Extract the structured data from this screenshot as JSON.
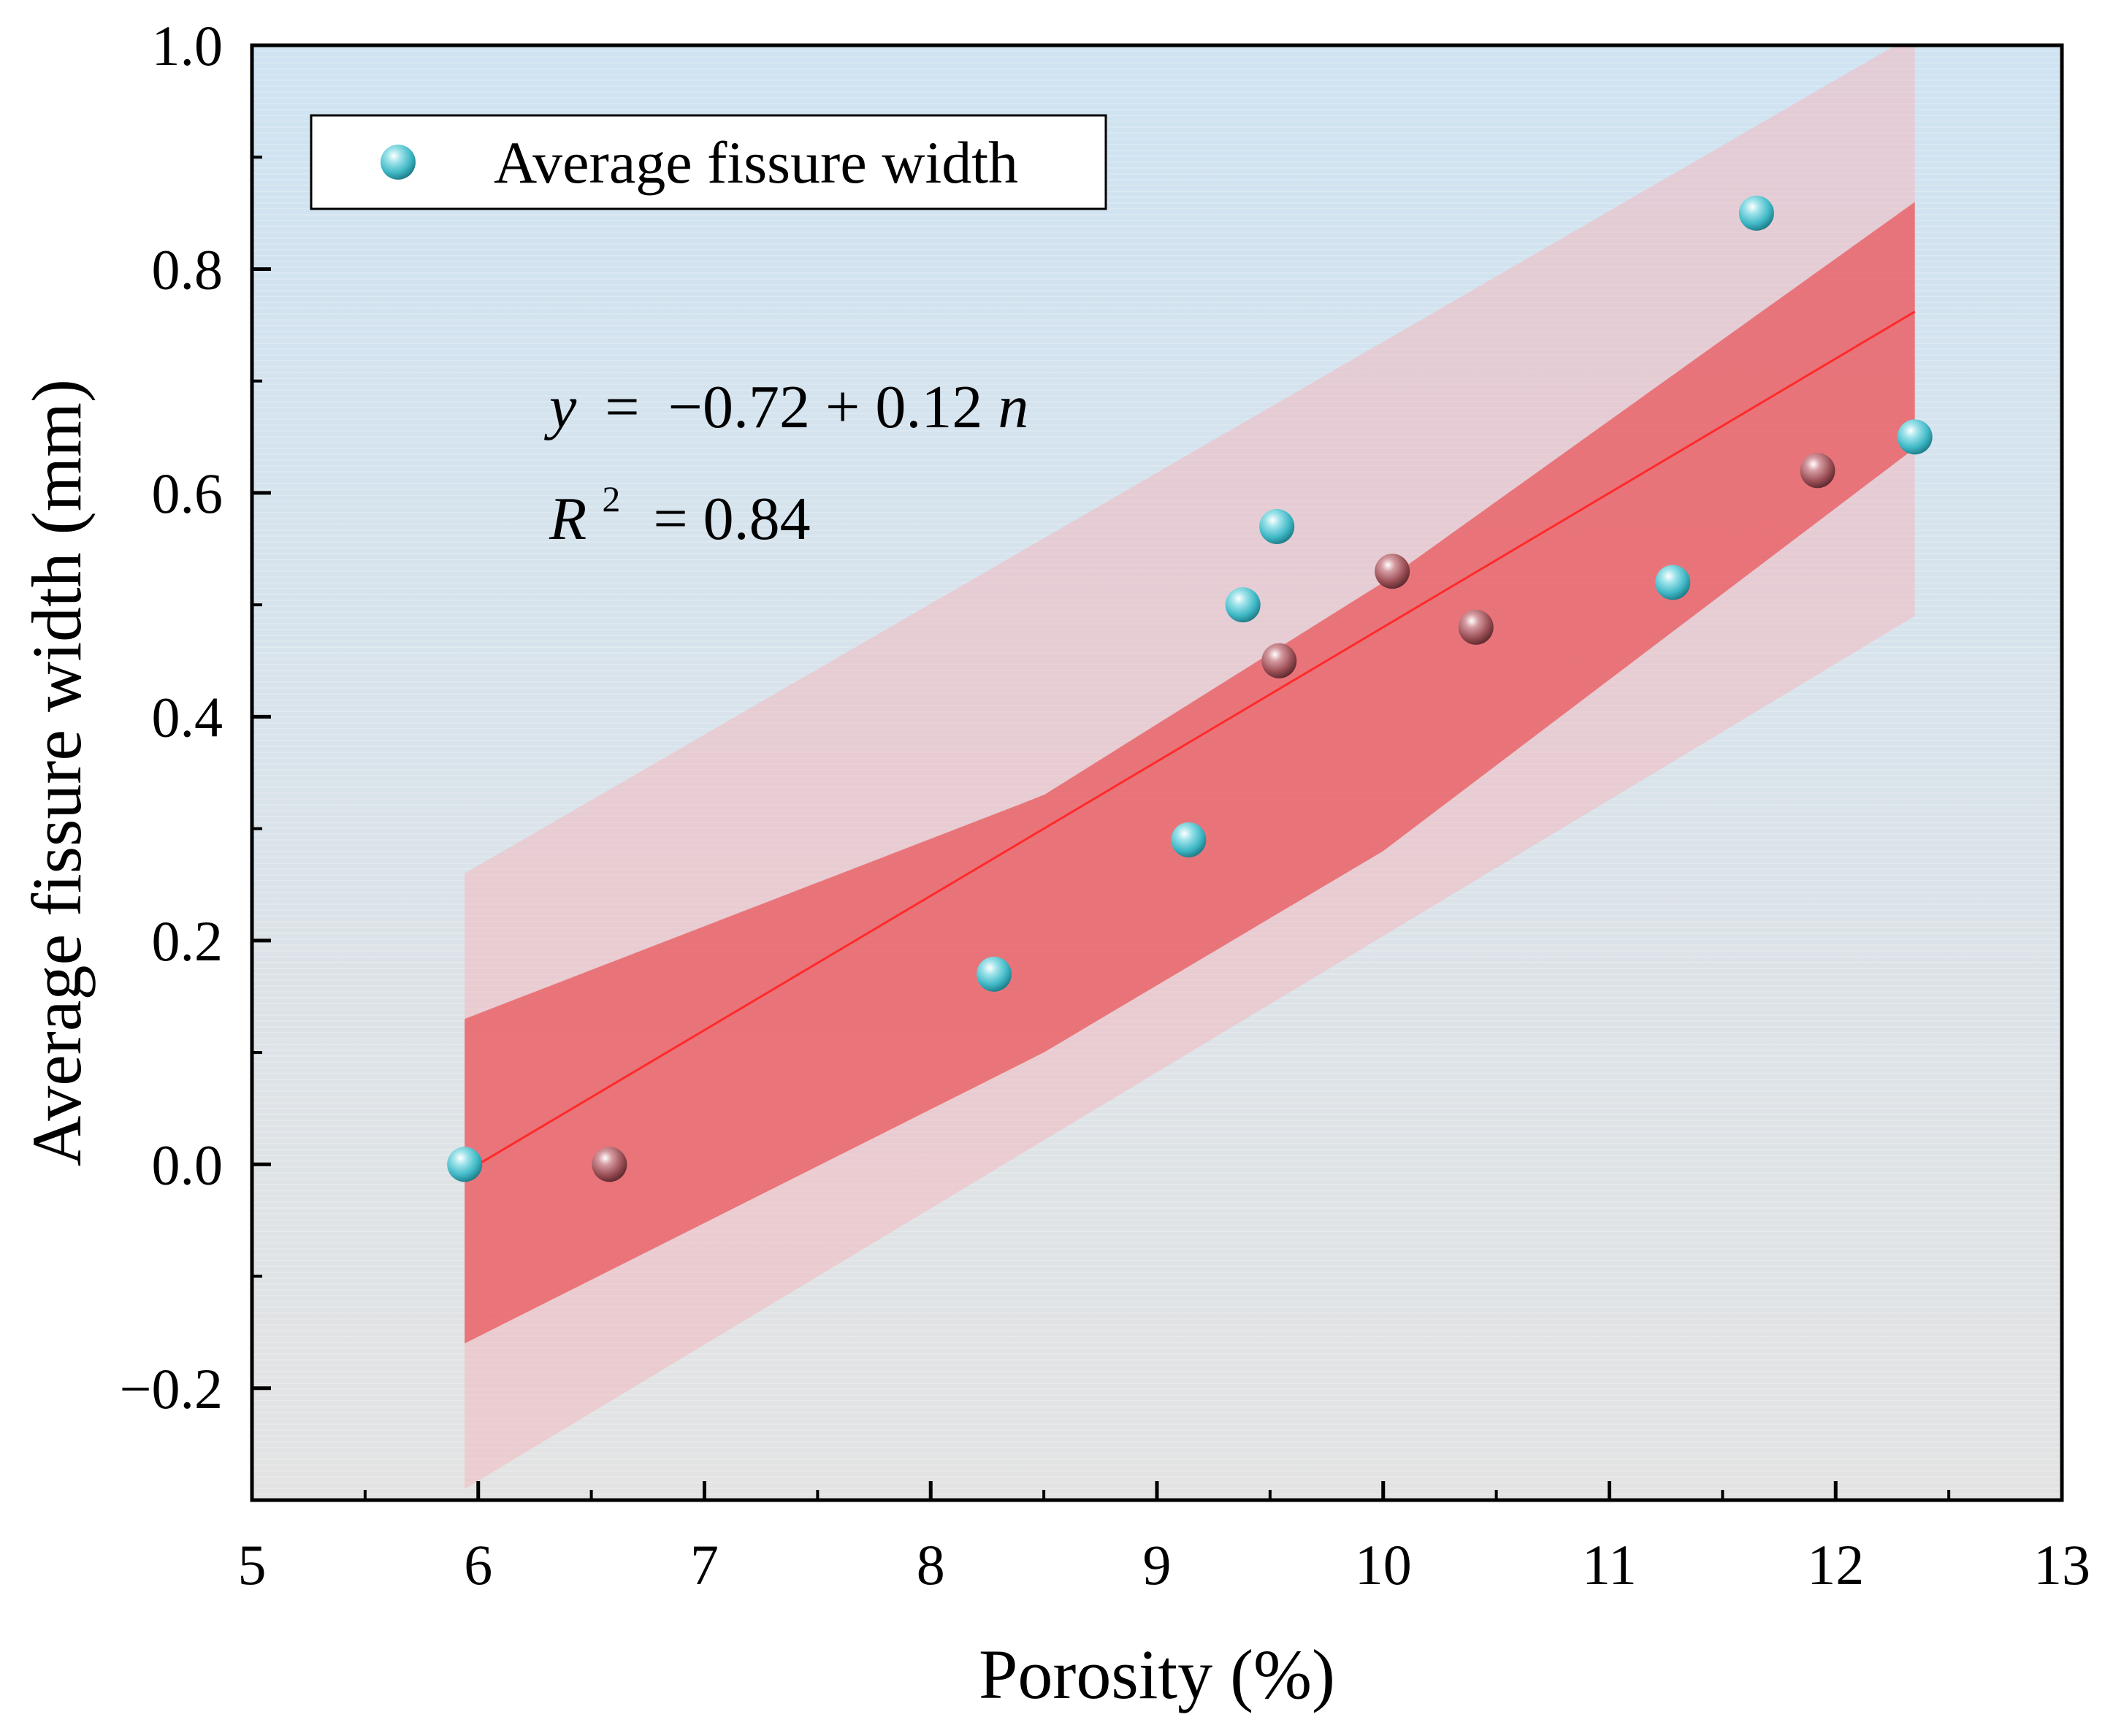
{
  "chart_data": {
    "type": "scatter",
    "title": "",
    "xlabel": "Porosity (%)",
    "ylabel": "Average fissure width (mm)",
    "xlim": [
      5,
      13
    ],
    "ylim": [
      -0.3,
      1.0
    ],
    "x_ticks": [
      5,
      6,
      7,
      8,
      9,
      10,
      11,
      12,
      13
    ],
    "y_ticks": [
      -0.2,
      0.0,
      0.2,
      0.4,
      0.6,
      0.8,
      1.0
    ],
    "x_tick_labels": [
      "5",
      "6",
      "7",
      "8",
      "9",
      "10",
      "11",
      "12",
      "13"
    ],
    "y_tick_labels": [
      "−0.2",
      "0.0",
      "0.2",
      "0.4",
      "0.6",
      "0.8",
      "1.0"
    ],
    "legend": {
      "label": "Average fissure width",
      "location": "top-left"
    },
    "series": [
      {
        "name": "Average fissure width",
        "points": [
          {
            "x": 5.94,
            "y": 0.0,
            "tone": "cyan"
          },
          {
            "x": 6.58,
            "y": 0.0,
            "tone": "maroon"
          },
          {
            "x": 8.28,
            "y": 0.17,
            "tone": "cyan"
          },
          {
            "x": 9.14,
            "y": 0.29,
            "tone": "cyan"
          },
          {
            "x": 9.38,
            "y": 0.5,
            "tone": "cyan"
          },
          {
            "x": 9.53,
            "y": 0.57,
            "tone": "cyan"
          },
          {
            "x": 9.54,
            "y": 0.45,
            "tone": "maroon"
          },
          {
            "x": 10.04,
            "y": 0.53,
            "tone": "maroon"
          },
          {
            "x": 10.41,
            "y": 0.48,
            "tone": "maroon"
          },
          {
            "x": 11.28,
            "y": 0.52,
            "tone": "cyan"
          },
          {
            "x": 11.65,
            "y": 0.85,
            "tone": "cyan"
          },
          {
            "x": 11.92,
            "y": 0.62,
            "tone": "maroon"
          },
          {
            "x": 12.35,
            "y": 0.65,
            "tone": "cyan"
          }
        ]
      }
    ],
    "fit": {
      "intercept": -0.72,
      "slope": 0.12,
      "x_range": [
        5.94,
        12.35
      ],
      "line_color": "#ff2a2a"
    },
    "confidence_band": {
      "x": [
        5.94,
        8.5,
        10.0,
        12.35
      ],
      "lower": [
        -0.16,
        0.1,
        0.28,
        0.64
      ],
      "upper": [
        0.13,
        0.33,
        0.52,
        0.86
      ],
      "color": "#e8575c"
    },
    "prediction_band": {
      "x": [
        5.94,
        12.35
      ],
      "lower": [
        -0.29,
        0.49
      ],
      "upper": [
        0.26,
        1.01
      ],
      "color": "#f2b9bf"
    },
    "annotations": {
      "equation": {
        "y": "y",
        "eq": "=",
        "rhs": "−0.72 + 0.12",
        "var": "n"
      },
      "r2": {
        "R": "R",
        "exp": "2",
        "rhs": "= 0.84"
      }
    },
    "background": {
      "top": "#cfe3f2",
      "bottom": "#e3e3e3"
    },
    "marker_colors": {
      "cyan": "#3fb8c6",
      "maroon": "#9b4f56"
    }
  }
}
